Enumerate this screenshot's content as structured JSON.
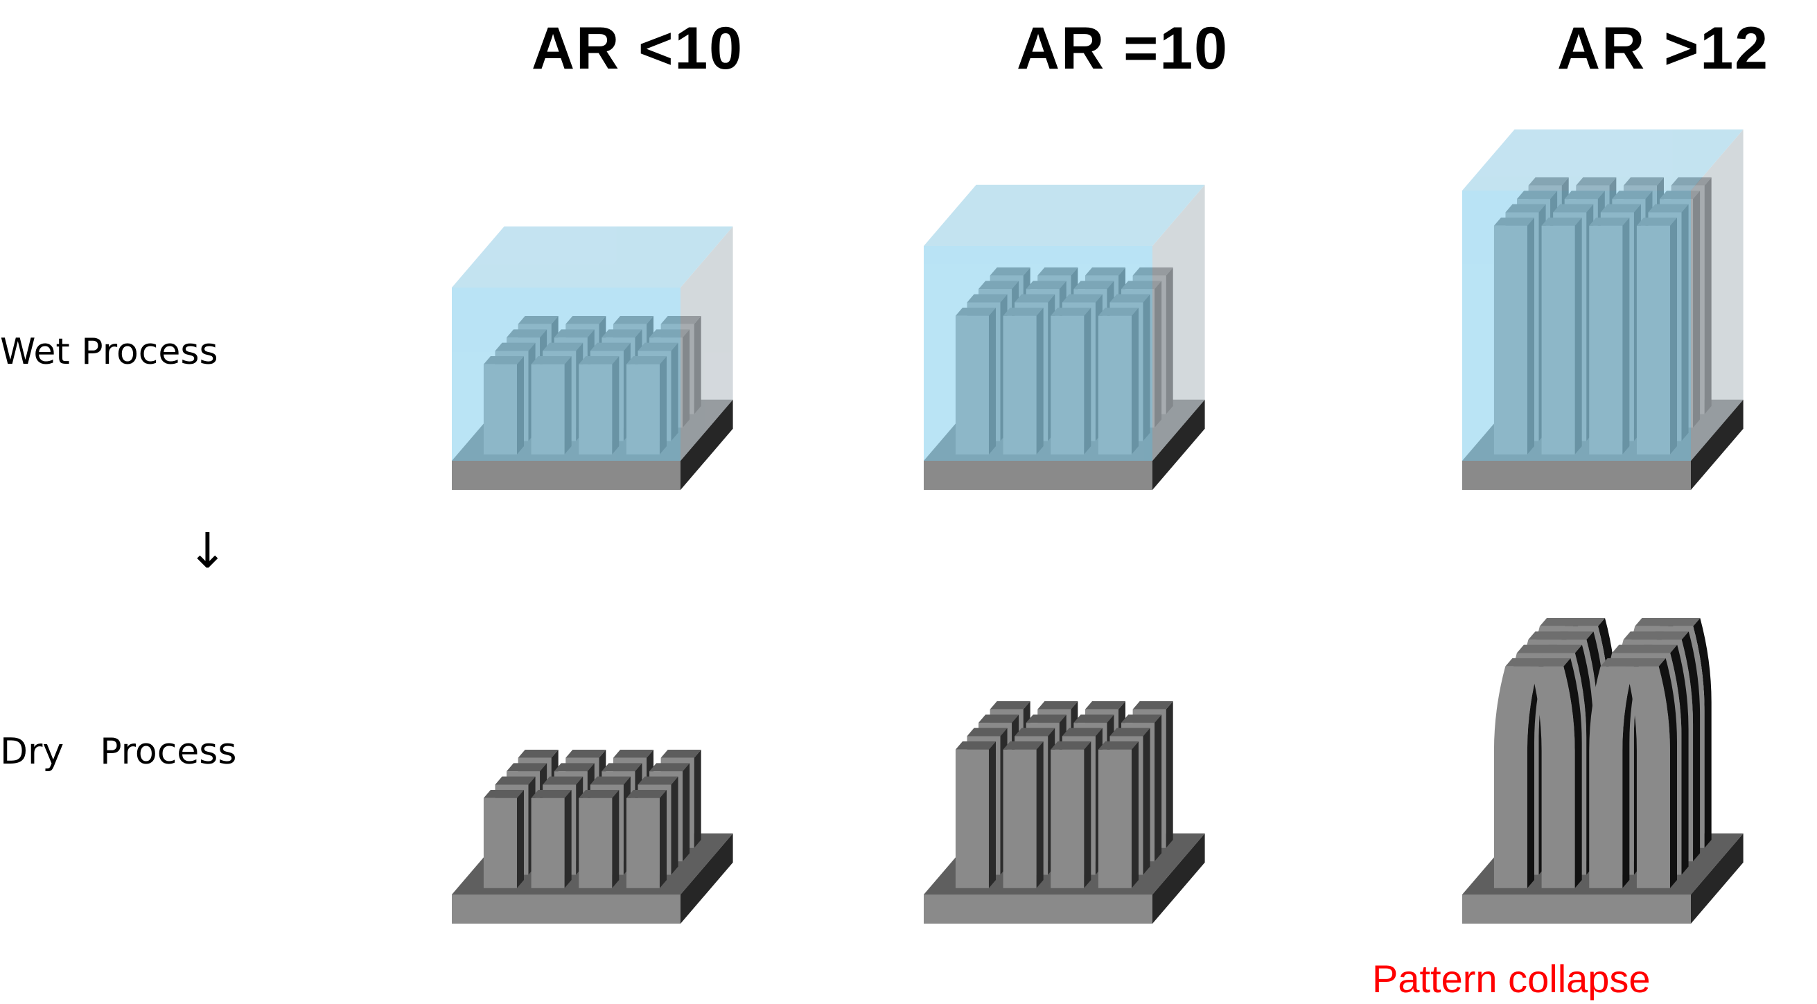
{
  "columns": [
    {
      "title": "AR <10",
      "status": "normal"
    },
    {
      "title": "AR =10",
      "status": "normal"
    },
    {
      "title": "AR >12",
      "status": "collapsed"
    }
  ],
  "rows": {
    "wet": "Wet Process",
    "arrow": "↓",
    "dry": "Dry　Process"
  },
  "annotation": "Pattern collapse",
  "colors": {
    "liquid": "#8fd3ef",
    "substrate_top": "#5f5f5f",
    "pillar_front": "#8a8a8a",
    "pillar_side": "#2b2b2b",
    "annotation": "#ff0000"
  }
}
